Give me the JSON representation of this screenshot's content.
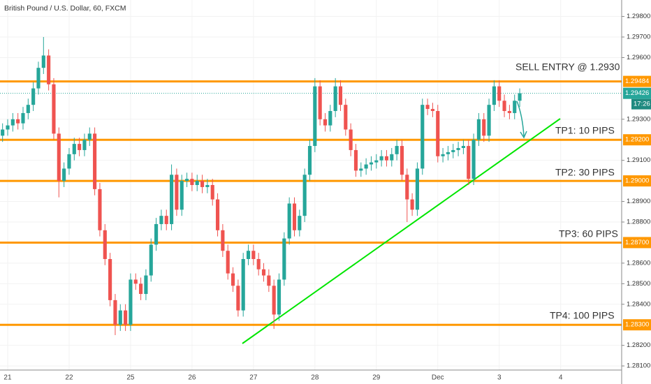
{
  "chart_data": {
    "type": "candlestick",
    "title": "British Pound / U.S. Dollar, 60, FXCM",
    "categories": [
      null,
      "21",
      null,
      null,
      null,
      null,
      null,
      null,
      null,
      null,
      null,
      null,
      null,
      "22",
      null,
      null,
      null,
      null,
      null,
      null,
      null,
      null,
      null,
      null,
      null,
      "25",
      null,
      null,
      null,
      null,
      null,
      null,
      null,
      null,
      null,
      null,
      null,
      "26",
      null,
      null,
      null,
      null,
      null,
      null,
      null,
      null,
      null,
      null,
      null,
      "27",
      null,
      null,
      null,
      null,
      null,
      null,
      null,
      null,
      null,
      null,
      null,
      "28",
      null,
      null,
      null,
      null,
      null,
      null,
      null,
      null,
      null,
      null,
      null,
      "29",
      null,
      null,
      null,
      null,
      null,
      null,
      null,
      null,
      null,
      null,
      null,
      "Dec",
      null,
      null,
      null,
      null,
      null,
      null,
      null,
      null,
      null,
      null,
      null,
      "3",
      null,
      null,
      null,
      null,
      null,
      null,
      null,
      null,
      null,
      null,
      null,
      "4",
      null,
      null,
      null,
      null,
      null,
      null,
      null,
      null,
      null,
      null,
      null
    ],
    "open": [
      1.2922,
      1.2925,
      1.2927,
      1.293,
      1.2928,
      1.2933,
      1.2937,
      1.2945,
      1.2955,
      1.2961,
      1.2947,
      1.2923,
      1.29,
      1.2906,
      1.2913,
      1.2918,
      1.2915,
      1.292,
      1.2923,
      1.2896,
      1.2876,
      1.2862,
      1.2842,
      1.283,
      1.2837,
      1.283,
      1.2852,
      1.285,
      1.2845,
      1.2854,
      1.2869,
      1.2879,
      1.2883,
      1.2879,
      1.2903,
      1.2886,
      1.29,
      1.2901,
      1.2898,
      1.29,
      1.2897,
      1.2898,
      1.2891,
      1.2876,
      1.2866,
      1.2855,
      1.2849,
      1.2837,
      1.2862,
      1.2866,
      1.2862,
      1.2857,
      1.2854,
      1.2849,
      1.2835,
      1.2852,
      1.2872,
      1.2889,
      1.2876,
      1.2883,
      1.2903,
      1.2917,
      1.2946,
      1.293,
      1.2927,
      1.2934,
      1.2946,
      1.2937,
      1.2925,
      1.2915,
      1.2905,
      1.2906,
      1.2908,
      1.2909,
      1.291,
      1.2912,
      1.291,
      1.2913,
      1.2917,
      1.2903,
      1.2891,
      1.2886,
      1.2906,
      1.2937,
      1.2935,
      1.2934,
      1.2912,
      1.2913,
      1.2914,
      1.2915,
      1.2916,
      1.2917,
      1.2901,
      1.292,
      1.293,
      1.2922,
      1.2937,
      1.2946,
      1.2939,
      1.2934,
      1.2933,
      1.2939,
      null,
      null,
      null,
      null,
      null,
      null,
      null,
      null,
      null,
      null,
      null,
      null,
      null,
      null,
      null,
      null,
      null,
      null,
      null
    ],
    "high": [
      1.2928,
      1.293,
      1.2933,
      1.2933,
      1.2936,
      1.294,
      1.2948,
      1.2958,
      1.297,
      1.2964,
      1.295,
      1.2926,
      1.2909,
      1.2916,
      1.2921,
      1.2921,
      1.2923,
      1.2926,
      1.2926,
      1.2899,
      1.2879,
      1.2865,
      1.2845,
      1.284,
      1.284,
      1.2855,
      1.2855,
      1.2853,
      1.2857,
      1.2872,
      1.2882,
      1.2886,
      1.2886,
      1.2908,
      1.2906,
      1.2903,
      1.2904,
      1.2904,
      1.2903,
      1.2903,
      1.2901,
      1.2901,
      1.2894,
      1.2879,
      1.2869,
      1.2858,
      1.2852,
      1.2865,
      1.2869,
      1.2869,
      1.2865,
      1.286,
      1.2857,
      1.2852,
      1.2855,
      1.2875,
      1.2892,
      1.2892,
      1.2886,
      1.2906,
      1.292,
      1.295,
      1.2949,
      1.2933,
      1.2937,
      1.295,
      1.2949,
      1.294,
      1.2928,
      1.2918,
      1.2909,
      1.2911,
      1.2912,
      1.2913,
      1.2915,
      1.2915,
      1.2916,
      1.292,
      1.292,
      1.2906,
      1.2894,
      1.2909,
      1.294,
      1.294,
      1.2938,
      1.2937,
      1.2916,
      1.2917,
      1.2918,
      1.2919,
      1.292,
      1.292,
      1.2923,
      1.2933,
      1.2933,
      1.294,
      1.2949,
      1.2949,
      1.2942,
      1.2937,
      1.2942,
      1.2945,
      null,
      null,
      null,
      null,
      null,
      null,
      null,
      null,
      null,
      null,
      null,
      null,
      null,
      null,
      null,
      null,
      null,
      null,
      null
    ],
    "low": [
      1.2919,
      1.2922,
      1.2924,
      1.2925,
      1.2925,
      1.293,
      1.2934,
      1.2942,
      1.2952,
      1.2944,
      1.292,
      1.2892,
      1.2897,
      1.2903,
      1.291,
      1.2912,
      1.2912,
      1.2917,
      1.2893,
      1.2873,
      1.2859,
      1.2839,
      1.2825,
      1.2827,
      1.2827,
      1.2827,
      1.2847,
      1.2842,
      1.2842,
      1.2851,
      1.2866,
      1.2876,
      1.2876,
      1.2876,
      1.2883,
      1.2883,
      1.2897,
      1.2895,
      1.2895,
      1.2894,
      1.2894,
      1.2888,
      1.2873,
      1.2863,
      1.2852,
      1.2846,
      1.2834,
      1.2834,
      1.2859,
      1.2859,
      1.2854,
      1.2851,
      1.2846,
      1.2828,
      1.2832,
      1.2849,
      1.2869,
      1.2873,
      1.2873,
      1.288,
      1.29,
      1.2914,
      1.2927,
      1.2924,
      1.2924,
      1.2931,
      1.2934,
      1.2922,
      1.2912,
      1.2902,
      1.2902,
      1.2903,
      1.2905,
      1.2906,
      1.2907,
      1.2907,
      1.2907,
      1.291,
      1.29,
      1.288,
      1.2883,
      1.2883,
      1.2903,
      1.2932,
      1.2931,
      1.2909,
      1.2909,
      1.291,
      1.2911,
      1.2912,
      1.2913,
      1.2898,
      1.2898,
      1.2917,
      1.2919,
      1.2919,
      1.2934,
      1.2936,
      1.2931,
      1.293,
      1.293,
      1.2936,
      null,
      null,
      null,
      null,
      null,
      null,
      null,
      null,
      null,
      null,
      null,
      null,
      null,
      null,
      null,
      null,
      null,
      null,
      null
    ],
    "close": [
      1.2925,
      1.2927,
      1.293,
      1.2928,
      1.2933,
      1.2937,
      1.2945,
      1.2955,
      1.2961,
      1.2947,
      1.2923,
      1.29,
      1.2906,
      1.2913,
      1.2918,
      1.2915,
      1.292,
      1.2923,
      1.2896,
      1.2876,
      1.2862,
      1.2842,
      1.283,
      1.2837,
      1.283,
      1.2852,
      1.285,
      1.2845,
      1.2854,
      1.2869,
      1.2879,
      1.2883,
      1.2879,
      1.2903,
      1.2886,
      1.29,
      1.2901,
      1.2898,
      1.29,
      1.2897,
      1.2898,
      1.2891,
      1.2876,
      1.2866,
      1.2855,
      1.2849,
      1.2837,
      1.2862,
      1.2866,
      1.2862,
      1.2857,
      1.2854,
      1.2849,
      1.2835,
      1.2852,
      1.2872,
      1.2889,
      1.2876,
      1.2883,
      1.2903,
      1.2917,
      1.2946,
      1.293,
      1.2927,
      1.2934,
      1.2946,
      1.2937,
      1.2925,
      1.2915,
      1.2905,
      1.2906,
      1.2908,
      1.2909,
      1.291,
      1.2912,
      1.291,
      1.2913,
      1.2917,
      1.2903,
      1.2891,
      1.2886,
      1.2906,
      1.2937,
      1.2935,
      1.2934,
      1.2912,
      1.2913,
      1.2914,
      1.2915,
      1.2916,
      1.2917,
      1.2901,
      1.292,
      1.293,
      1.2922,
      1.2937,
      1.2946,
      1.2939,
      1.2934,
      1.2933,
      1.2939,
      1.29426,
      null,
      null,
      null,
      null,
      null,
      null,
      null,
      null,
      null,
      null,
      null,
      null,
      null,
      null,
      null,
      null,
      null,
      null,
      null
    ],
    "up_color": "#26a69a",
    "down_color": "#ef5350",
    "ylim": [
      1.2808,
      1.2988
    ],
    "yticks": [
      {
        "value": 1.298,
        "label": "1.29800"
      },
      {
        "value": 1.297,
        "label": "1.29700"
      },
      {
        "value": 1.296,
        "label": "1.29600"
      },
      {
        "value": 1.293,
        "label": "1.29300"
      },
      {
        "value": 1.291,
        "label": "1.29100"
      },
      {
        "value": 1.289,
        "label": "1.28900"
      },
      {
        "value": 1.288,
        "label": "1.28800"
      },
      {
        "value": 1.286,
        "label": "1.28600"
      },
      {
        "value": 1.285,
        "label": "1.28500"
      },
      {
        "value": 1.284,
        "label": "1.28400"
      },
      {
        "value": 1.282,
        "label": "1.28200"
      },
      {
        "value": 1.281,
        "label": "1.28100"
      }
    ],
    "levels": [
      1.29484,
      {
        "value": 1.292,
        "label": "1.29200"
      },
      {
        "value": 1.29,
        "label": "1.29000"
      },
      {
        "value": 1.287,
        "label": "1.28700"
      },
      {
        "value": 1.283,
        "label": "1.28300"
      }
    ],
    "level_color": "#ff9800",
    "last_price": 1.29426,
    "countdown": "17:26",
    "annotations": [
      "SELL ENTRY @ 1.2930",
      "TP1: 10 PIPS",
      "TP2: 30 PIPS",
      "TP3: 60 PIPS",
      "TP4: 100 PIPS"
    ]
  }
}
